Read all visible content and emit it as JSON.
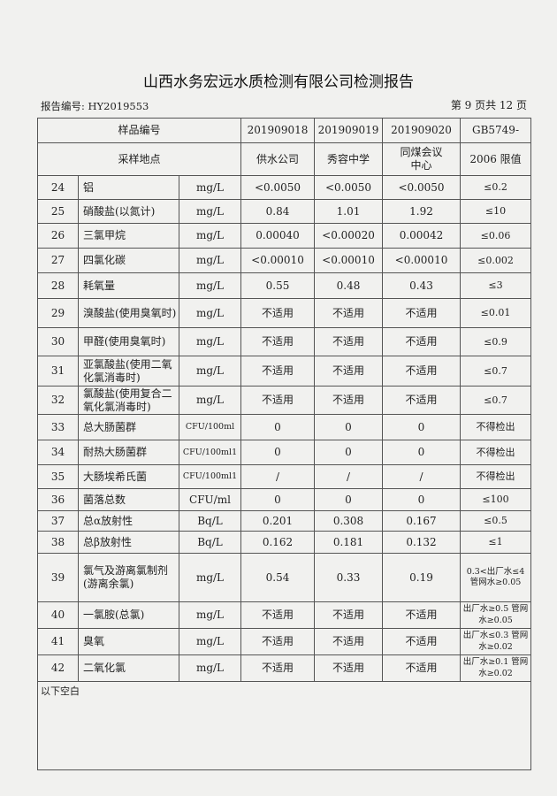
{
  "title": "山西水务宏远水质检测有限公司检测报告",
  "report_no": "报告编号: HY2019553",
  "page_no": "第 9 页共 12 页",
  "header": {
    "sample_no_label": "样品编号",
    "site_label": "采样地点",
    "samples": [
      {
        "no": "201909018",
        "site": "供水公司"
      },
      {
        "no": "201909019",
        "site": "秀容中学"
      },
      {
        "no": "201909020",
        "site": "同煤会议中心"
      }
    ],
    "standard_line1": "GB5749-",
    "standard_line2": "2006 限值"
  },
  "rows": [
    {
      "n": "24",
      "name": "铝",
      "unit": "mg/L",
      "v": [
        "<0.0050",
        "<0.0050",
        "<0.0050"
      ],
      "std": "≤0.2"
    },
    {
      "n": "25",
      "name": "硝酸盐(以氮计)",
      "unit": "mg/L",
      "v": [
        "0.84",
        "1.01",
        "1.92"
      ],
      "std": "≤10"
    },
    {
      "n": "26",
      "name": "三氯甲烷",
      "unit": "mg/L",
      "v": [
        "0.00040",
        "<0.00020",
        "0.00042"
      ],
      "std": "≤0.06"
    },
    {
      "n": "27",
      "name": "四氯化碳",
      "unit": "mg/L",
      "v": [
        "<0.00010",
        "<0.00010",
        "<0.00010"
      ],
      "std": "≤0.002"
    },
    {
      "n": "28",
      "name": "耗氧量",
      "unit": "mg/L",
      "v": [
        "0.55",
        "0.48",
        "0.43"
      ],
      "std": "≤3"
    },
    {
      "n": "29",
      "name": "溴酸盐(使用臭氧时)",
      "unit": "mg/L",
      "v": [
        "不适用",
        "不适用",
        "不适用"
      ],
      "std": "≤0.01"
    },
    {
      "n": "30",
      "name": "甲醛(使用臭氧时)",
      "unit": "mg/L",
      "v": [
        "不适用",
        "不适用",
        "不适用"
      ],
      "std": "≤0.9"
    },
    {
      "n": "31",
      "name": "亚氯酸盐(使用二氧化氯消毒时)",
      "unit": "mg/L",
      "v": [
        "不适用",
        "不适用",
        "不适用"
      ],
      "std": "≤0.7"
    },
    {
      "n": "32",
      "name": "氯酸盐(使用复合二氧化氯消毒时)",
      "unit": "mg/L",
      "v": [
        "不适用",
        "不适用",
        "不适用"
      ],
      "std": "≤0.7"
    },
    {
      "n": "33",
      "name": "总大肠菌群",
      "unit": "CFU/100ml",
      "v": [
        "0",
        "0",
        "0"
      ],
      "std": "不得检出"
    },
    {
      "n": "34",
      "name": "耐热大肠菌群",
      "unit": "CFU/100ml1",
      "v": [
        "0",
        "0",
        "0"
      ],
      "std": "不得检出"
    },
    {
      "n": "35",
      "name": "大肠埃希氏菌",
      "unit": "CFU/100ml1",
      "v": [
        "/",
        "/",
        "/"
      ],
      "std": "不得检出"
    },
    {
      "n": "36",
      "name": "菌落总数",
      "unit": "CFU/ml",
      "v": [
        "0",
        "0",
        "0"
      ],
      "std": "≤100"
    },
    {
      "n": "37",
      "name": "总α放射性",
      "unit": "Bq/L",
      "v": [
        "0.201",
        "0.308",
        "0.167"
      ],
      "std": "≤0.5"
    },
    {
      "n": "38",
      "name": "总β放射性",
      "unit": "Bq/L",
      "v": [
        "0.162",
        "0.181",
        "0.132"
      ],
      "std": "≤1"
    },
    {
      "n": "39",
      "name": "氯气及游离氯制剂(游离余氯)",
      "unit": "mg/L",
      "v": [
        "0.54",
        "0.33",
        "0.19"
      ],
      "std": "0.3<出厂水≤4 管网水≥0.05"
    },
    {
      "n": "40",
      "name": "一氯胺(总氯)",
      "unit": "mg/L",
      "v": [
        "不适用",
        "不适用",
        "不适用"
      ],
      "std": "出厂水≥0.5 管网水≥0.05"
    },
    {
      "n": "41",
      "name": "臭氧",
      "unit": "mg/L",
      "v": [
        "不适用",
        "不适用",
        "不适用"
      ],
      "std": "出厂水≤0.3 管网水≥0.02"
    },
    {
      "n": "42",
      "name": "二氧化氯",
      "unit": "mg/L",
      "v": [
        "不适用",
        "不适用",
        "不适用"
      ],
      "std": "出厂水≥0.1 管网水≥0.02"
    }
  ],
  "note": "以下空白"
}
